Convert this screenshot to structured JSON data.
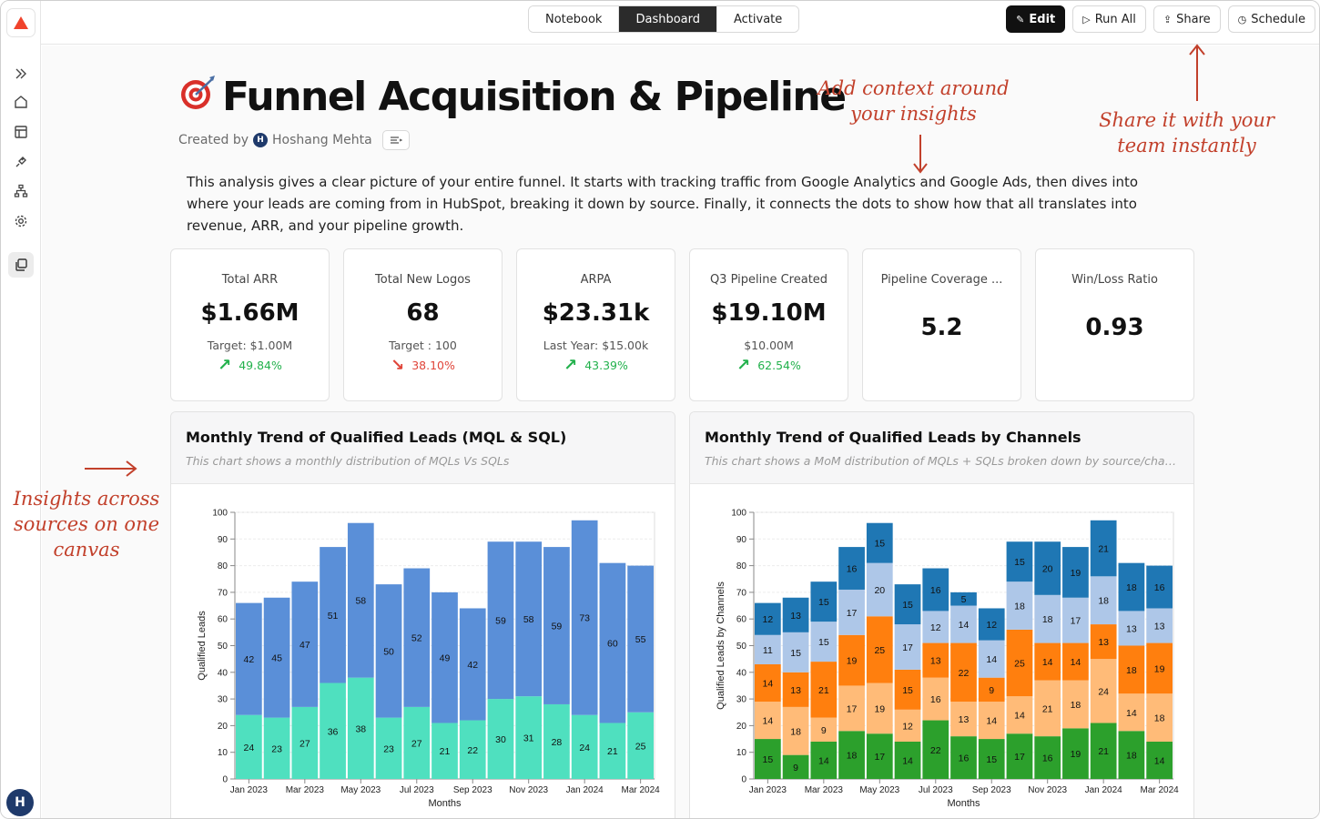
{
  "nav": {
    "tabs": [
      {
        "label": "Notebook",
        "active": false
      },
      {
        "label": "Dashboard",
        "active": true
      },
      {
        "label": "Activate",
        "active": false
      }
    ],
    "actions": {
      "edit": "Edit",
      "run_all": "Run All",
      "share": "Share",
      "schedule": "Schedule"
    },
    "user_initial": "H"
  },
  "page": {
    "title": "Funnel Acquisition & Pipeline",
    "created_by_label": "Created by",
    "author_initial": "H",
    "author": "Hoshang Mehta",
    "description": "This analysis gives a clear picture of your entire funnel. It starts with tracking traffic from Google Analytics and Google Ads, then dives into where your leads are coming from in HubSpot, breaking it down by source. Finally, it connects the dots to show how that all translates into revenue, ARR, and your pipeline growth."
  },
  "kpis": [
    {
      "label": "Total ARR",
      "value": "$1.66M",
      "sub": "Target: $1.00M",
      "delta": "49.84%",
      "direction": "up"
    },
    {
      "label": "Total New Logos",
      "value": "68",
      "sub": "Target : 100",
      "delta": "38.10%",
      "direction": "down"
    },
    {
      "label": "ARPA",
      "value": "$23.31k",
      "sub": "Last Year: $15.00k",
      "delta": "43.39%",
      "direction": "up"
    },
    {
      "label": "Q3 Pipeline Created",
      "value": "$19.10M",
      "sub": "$10.00M",
      "delta": "62.54%",
      "direction": "up"
    },
    {
      "label": "Pipeline Coverage ...",
      "value": "5.2",
      "sub": "",
      "delta": "",
      "direction": ""
    },
    {
      "label": "Win/Loss Ratio",
      "value": "0.93",
      "sub": "",
      "delta": "",
      "direction": ""
    }
  ],
  "annotations": {
    "context": "Add context around your insights",
    "share": "Share it with your team instantly",
    "insights": "Insights across sources on one canvas"
  },
  "colors": {
    "mql": "#5a8fd8",
    "sql": "#4fe0bf",
    "ch1": "#2ca02c",
    "ch2": "#ffbb78",
    "ch3": "#ff7f0e",
    "ch4": "#aec7e8",
    "ch5": "#1f77b4",
    "accent": "#c2402b"
  },
  "charts": [
    {
      "title": "Monthly Trend of Qualified Leads (MQL & SQL)",
      "subtitle": "This chart shows a monthly distribution of MQLs Vs SQLs"
    },
    {
      "title": "Monthly Trend of Qualified Leads by Channels",
      "subtitle": "This chart shows a MoM distribution of MQLs + SQLs broken down by source/channel o..."
    }
  ],
  "chart_data": [
    {
      "type": "bar",
      "stacked": true,
      "title": "Monthly Trend of Qualified Leads (MQL & SQL)",
      "xlabel": "Months",
      "ylabel": "Qualified Leads",
      "ylim": [
        0,
        100
      ],
      "yticks": [
        0,
        10,
        20,
        30,
        40,
        50,
        60,
        70,
        80,
        90,
        100
      ],
      "x_tick_labels": [
        "Jan 2023",
        "Mar 2023",
        "May 2023",
        "Jul 2023",
        "Sep 2023",
        "Nov 2023",
        "Jan 2024",
        "Mar 2024"
      ],
      "categories": [
        "Jan 2023",
        "Feb 2023",
        "Mar 2023",
        "Apr 2023",
        "May 2023",
        "Jun 2023",
        "Jul 2023",
        "Aug 2023",
        "Sep 2023",
        "Oct 2023",
        "Nov 2023",
        "Dec 2023",
        "Jan 2024",
        "Feb 2024",
        "Mar 2024"
      ],
      "series": [
        {
          "values": [
            24,
            23,
            27,
            36,
            38,
            23,
            27,
            21,
            22,
            30,
            31,
            28,
            24,
            21,
            25
          ]
        },
        {
          "values": [
            42,
            45,
            47,
            51,
            58,
            50,
            52,
            49,
            42,
            59,
            58,
            59,
            73,
            60,
            55
          ]
        }
      ]
    },
    {
      "type": "bar",
      "stacked": true,
      "title": "Monthly Trend of Qualified Leads by Channels",
      "xlabel": "Months",
      "ylabel": "Qualified Leads by Channels",
      "ylim": [
        0,
        100
      ],
      "yticks": [
        0,
        10,
        20,
        30,
        40,
        50,
        60,
        70,
        80,
        90,
        100
      ],
      "x_tick_labels": [
        "Jan 2023",
        "Mar 2023",
        "May 2023",
        "Jul 2023",
        "Sep 2023",
        "Nov 2023",
        "Jan 2024",
        "Mar 2024"
      ],
      "categories": [
        "Jan 2023",
        "Feb 2023",
        "Mar 2023",
        "Apr 2023",
        "May 2023",
        "Jun 2023",
        "Jul 2023",
        "Aug 2023",
        "Sep 2023",
        "Oct 2023",
        "Nov 2023",
        "Dec 2023",
        "Jan 2024",
        "Feb 2024",
        "Mar 2024"
      ],
      "series": [
        {
          "values": [
            15,
            9,
            14,
            18,
            17,
            14,
            22,
            16,
            15,
            17,
            16,
            19,
            21,
            18,
            14
          ]
        },
        {
          "values": [
            14,
            18,
            9,
            17,
            19,
            12,
            16,
            13,
            14,
            14,
            21,
            18,
            24,
            14,
            18
          ]
        },
        {
          "values": [
            14,
            13,
            21,
            19,
            25,
            15,
            13,
            22,
            9,
            25,
            14,
            14,
            13,
            18,
            19
          ]
        },
        {
          "values": [
            11,
            15,
            15,
            17,
            20,
            17,
            12,
            14,
            14,
            18,
            18,
            17,
            18,
            13,
            13
          ]
        },
        {
          "values": [
            12,
            13,
            15,
            16,
            15,
            15,
            16,
            5,
            12,
            15,
            20,
            19,
            21,
            18,
            16
          ]
        }
      ]
    }
  ]
}
